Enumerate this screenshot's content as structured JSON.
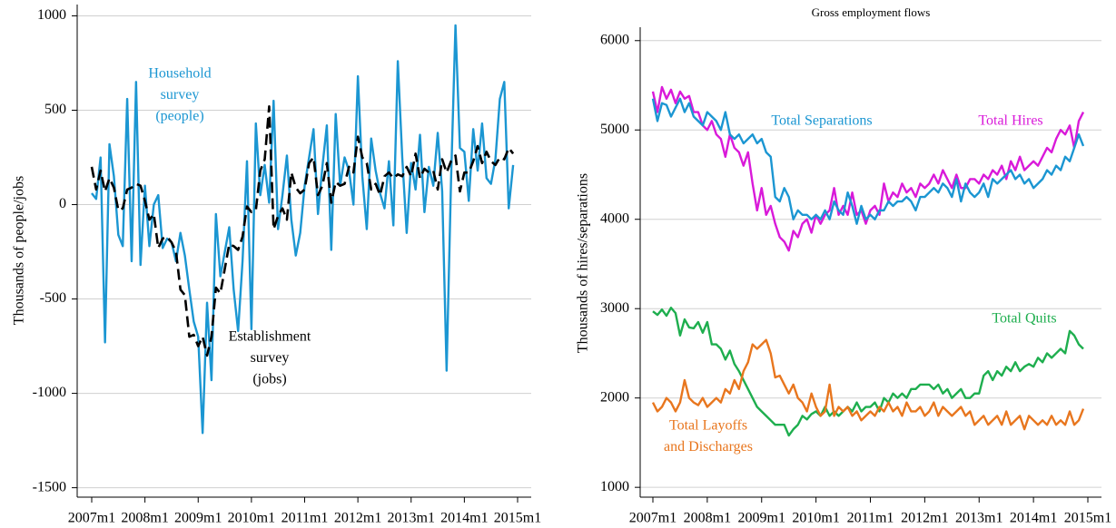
{
  "chart_data": [
    {
      "type": "line",
      "y_label": "Thousands of people/jobs",
      "ylim": [
        -1550,
        1060
      ],
      "yticks": [
        -1500,
        -1000,
        -500,
        0,
        500,
        1000
      ],
      "grid": true,
      "xticks": [
        "2007m1",
        "2008m1",
        "2009m1",
        "2010m1",
        "2011m1",
        "2012m1",
        "2013m1",
        "2014m1",
        "2015m1"
      ],
      "x": [
        "2007m1",
        "2007m2",
        "2007m3",
        "2007m4",
        "2007m5",
        "2007m6",
        "2007m7",
        "2007m8",
        "2007m9",
        "2007m10",
        "2007m11",
        "2007m12",
        "2008m1",
        "2008m2",
        "2008m3",
        "2008m4",
        "2008m5",
        "2008m6",
        "2008m7",
        "2008m8",
        "2008m9",
        "2008m10",
        "2008m11",
        "2008m12",
        "2009m1",
        "2009m2",
        "2009m3",
        "2009m4",
        "2009m5",
        "2009m6",
        "2009m7",
        "2009m8",
        "2009m9",
        "2009m10",
        "2009m11",
        "2009m12",
        "2010m1",
        "2010m2",
        "2010m3",
        "2010m4",
        "2010m5",
        "2010m6",
        "2010m7",
        "2010m8",
        "2010m9",
        "2010m10",
        "2010m11",
        "2010m12",
        "2011m1",
        "2011m2",
        "2011m3",
        "2011m4",
        "2011m5",
        "2011m6",
        "2011m7",
        "2011m8",
        "2011m9",
        "2011m10",
        "2011m11",
        "2011m12",
        "2012m1",
        "2012m2",
        "2012m3",
        "2012m4",
        "2012m5",
        "2012m6",
        "2012m7",
        "2012m8",
        "2012m9",
        "2012m10",
        "2012m11",
        "2012m12",
        "2013m1",
        "2013m2",
        "2013m3",
        "2013m4",
        "2013m5",
        "2013m6",
        "2013m7",
        "2013m8",
        "2013m9",
        "2013m10",
        "2013m11",
        "2013m12",
        "2014m1",
        "2014m2",
        "2014m3",
        "2014m4",
        "2014m5",
        "2014m6",
        "2014m7",
        "2014m8",
        "2014m9",
        "2014m10",
        "2014m11",
        "2014m12"
      ],
      "series": [
        {
          "name": [
            "Household",
            "survey",
            "(people)"
          ],
          "color": "#1b96d2",
          "style": "solid",
          "values": [
            60,
            30,
            250,
            -730,
            320,
            150,
            -160,
            -220,
            560,
            -300,
            650,
            -320,
            100,
            -220,
            0,
            50,
            -230,
            -180,
            -200,
            -300,
            -150,
            -270,
            -450,
            -620,
            -700,
            -1210,
            -520,
            -930,
            -50,
            -380,
            -250,
            -120,
            -450,
            -670,
            -300,
            230,
            -660,
            430,
            50,
            210,
            10,
            550,
            -130,
            50,
            260,
            -80,
            -270,
            -150,
            100,
            250,
            400,
            -50,
            200,
            420,
            -240,
            480,
            100,
            250,
            180,
            0,
            680,
            150,
            -130,
            350,
            180,
            60,
            -20,
            230,
            -110,
            760,
            250,
            -150,
            220,
            80,
            370,
            -40,
            200,
            100,
            380,
            70,
            -880,
            130,
            950,
            300,
            280,
            20,
            400,
            180,
            430,
            140,
            110,
            240,
            560,
            650,
            -20,
            210
          ]
        },
        {
          "name": [
            "Establishment",
            "survey",
            "(jobs)"
          ],
          "color": "#000000",
          "style": "dashed",
          "values": [
            200,
            80,
            180,
            70,
            140,
            90,
            -30,
            -20,
            80,
            90,
            110,
            100,
            20,
            -80,
            -50,
            -230,
            -180,
            -170,
            -200,
            -250,
            -450,
            -480,
            -700,
            -690,
            -750,
            -700,
            -800,
            -700,
            -440,
            -470,
            -340,
            -210,
            -220,
            -240,
            -170,
            -10,
            -40,
            -30,
            180,
            240,
            520,
            -130,
            -60,
            -20,
            -80,
            170,
            90,
            60,
            80,
            220,
            250,
            50,
            100,
            220,
            10,
            120,
            100,
            110,
            200,
            170,
            360,
            250,
            220,
            80,
            110,
            50,
            150,
            170,
            140,
            160,
            150,
            200,
            150,
            270,
            140,
            190,
            170,
            180,
            80,
            240,
            170,
            230,
            260,
            70,
            170,
            170,
            230,
            310,
            220,
            280,
            230,
            210,
            250,
            240,
            300,
            270
          ]
        }
      ]
    },
    {
      "type": "line",
      "title": "Gross employment flows",
      "y_label": "Thousands of hires/separations",
      "ylim": [
        890,
        6150
      ],
      "yticks": [
        1000,
        2000,
        3000,
        4000,
        5000,
        6000
      ],
      "grid": true,
      "xticks": [
        "2007m1",
        "2008m1",
        "2009m1",
        "2010m1",
        "2011m1",
        "2012m1",
        "2013m1",
        "2014m1",
        "2015m1"
      ],
      "x": [
        "2007m1",
        "2007m2",
        "2007m3",
        "2007m4",
        "2007m5",
        "2007m6",
        "2007m7",
        "2007m8",
        "2007m9",
        "2007m10",
        "2007m11",
        "2007m12",
        "2008m1",
        "2008m2",
        "2008m3",
        "2008m4",
        "2008m5",
        "2008m6",
        "2008m7",
        "2008m8",
        "2008m9",
        "2008m10",
        "2008m11",
        "2008m12",
        "2009m1",
        "2009m2",
        "2009m3",
        "2009m4",
        "2009m5",
        "2009m6",
        "2009m7",
        "2009m8",
        "2009m9",
        "2009m10",
        "2009m11",
        "2009m12",
        "2010m1",
        "2010m2",
        "2010m3",
        "2010m4",
        "2010m5",
        "2010m6",
        "2010m7",
        "2010m8",
        "2010m9",
        "2010m10",
        "2010m11",
        "2010m12",
        "2011m1",
        "2011m2",
        "2011m3",
        "2011m4",
        "2011m5",
        "2011m6",
        "2011m7",
        "2011m8",
        "2011m9",
        "2011m10",
        "2011m11",
        "2011m12",
        "2012m1",
        "2012m2",
        "2012m3",
        "2012m4",
        "2012m5",
        "2012m6",
        "2012m7",
        "2012m8",
        "2012m9",
        "2012m10",
        "2012m11",
        "2012m12",
        "2013m1",
        "2013m2",
        "2013m3",
        "2013m4",
        "2013m5",
        "2013m6",
        "2013m7",
        "2013m8",
        "2013m9",
        "2013m10",
        "2013m11",
        "2013m12",
        "2014m1",
        "2014m2",
        "2014m3",
        "2014m4",
        "2014m5",
        "2014m6",
        "2014m7",
        "2014m8",
        "2014m9",
        "2014m10",
        "2014m11",
        "2014m12"
      ],
      "series": [
        {
          "name": [
            "Total Hires"
          ],
          "color": "#d91ad9",
          "style": "solid",
          "values": [
            5430,
            5200,
            5480,
            5350,
            5450,
            5300,
            5430,
            5350,
            5380,
            5200,
            5200,
            5050,
            5000,
            5100,
            4950,
            4900,
            4700,
            4950,
            4800,
            4750,
            4600,
            4750,
            4400,
            4100,
            4350,
            4050,
            4150,
            3950,
            3800,
            3750,
            3650,
            3870,
            3800,
            3950,
            4000,
            3850,
            4050,
            3950,
            4050,
            4100,
            4350,
            4050,
            4150,
            4050,
            4300,
            4050,
            4100,
            3950,
            4100,
            4150,
            4050,
            4400,
            4200,
            4300,
            4250,
            4400,
            4300,
            4350,
            4250,
            4400,
            4350,
            4400,
            4500,
            4400,
            4550,
            4450,
            4350,
            4500,
            4350,
            4350,
            4450,
            4450,
            4400,
            4500,
            4450,
            4550,
            4500,
            4600,
            4450,
            4650,
            4550,
            4700,
            4550,
            4600,
            4650,
            4600,
            4700,
            4800,
            4750,
            4900,
            5000,
            4950,
            5050,
            4800,
            5100,
            5200
          ]
        },
        {
          "name": [
            "Total Separations"
          ],
          "color": "#1b96d2",
          "style": "solid",
          "values": [
            5350,
            5100,
            5300,
            5280,
            5150,
            5250,
            5350,
            5200,
            5300,
            5150,
            5100,
            5050,
            5200,
            5150,
            5100,
            5000,
            5200,
            4950,
            4900,
            4950,
            4850,
            4900,
            4950,
            4850,
            4900,
            4750,
            4700,
            4250,
            4200,
            4350,
            4250,
            4000,
            4100,
            4050,
            4050,
            4000,
            4050,
            4000,
            4100,
            4000,
            4200,
            4100,
            4050,
            4300,
            4150,
            3950,
            4150,
            4000,
            4050,
            4000,
            4100,
            4100,
            4200,
            4150,
            4200,
            4200,
            4250,
            4200,
            4100,
            4250,
            4250,
            4300,
            4350,
            4300,
            4400,
            4350,
            4250,
            4450,
            4200,
            4400,
            4300,
            4250,
            4300,
            4400,
            4250,
            4450,
            4400,
            4450,
            4500,
            4550,
            4450,
            4500,
            4400,
            4450,
            4350,
            4400,
            4450,
            4550,
            4500,
            4600,
            4550,
            4700,
            4650,
            4800,
            4950,
            4820
          ]
        },
        {
          "name": [
            "Total Quits"
          ],
          "color": "#1eae4e",
          "style": "solid",
          "values": [
            2970,
            2930,
            2990,
            2920,
            3010,
            2950,
            2700,
            2880,
            2790,
            2780,
            2850,
            2730,
            2850,
            2600,
            2600,
            2550,
            2430,
            2530,
            2380,
            2300,
            2200,
            2100,
            2000,
            1900,
            1850,
            1800,
            1750,
            1700,
            1700,
            1700,
            1580,
            1650,
            1700,
            1800,
            1760,
            1820,
            1850,
            1800,
            1900,
            1800,
            1850,
            1800,
            1850,
            1900,
            1850,
            1950,
            1850,
            1900,
            1900,
            1950,
            1850,
            2000,
            1950,
            2050,
            2000,
            2050,
            2000,
            2100,
            2100,
            2150,
            2150,
            2150,
            2100,
            2150,
            2050,
            2100,
            2000,
            2050,
            2100,
            2000,
            2000,
            2050,
            2050,
            2250,
            2300,
            2200,
            2300,
            2250,
            2350,
            2300,
            2400,
            2300,
            2350,
            2380,
            2350,
            2450,
            2400,
            2500,
            2450,
            2500,
            2550,
            2500,
            2750,
            2700,
            2600,
            2550
          ]
        },
        {
          "name": [
            "Total Layoffs",
            "and Discharges"
          ],
          "color": "#e8761e",
          "style": "solid",
          "values": [
            1950,
            1850,
            1900,
            2000,
            1950,
            1850,
            1950,
            2200,
            2000,
            1950,
            1920,
            2000,
            1900,
            1950,
            2000,
            1950,
            2100,
            2050,
            2200,
            2100,
            2300,
            2400,
            2600,
            2550,
            2600,
            2650,
            2500,
            2230,
            2250,
            2150,
            2050,
            2150,
            2000,
            1950,
            1850,
            2050,
            1900,
            1800,
            1850,
            2150,
            1800,
            1900,
            1850,
            1900,
            1800,
            1850,
            1750,
            1800,
            1850,
            1800,
            1900,
            1850,
            1950,
            1850,
            1900,
            1800,
            1950,
            1850,
            1850,
            1900,
            1800,
            1850,
            1950,
            1800,
            1900,
            1850,
            1800,
            1850,
            1900,
            1800,
            1850,
            1700,
            1750,
            1800,
            1700,
            1750,
            1800,
            1700,
            1850,
            1700,
            1750,
            1800,
            1650,
            1800,
            1750,
            1700,
            1750,
            1700,
            1800,
            1700,
            1750,
            1700,
            1850,
            1700,
            1750,
            1880
          ]
        }
      ]
    }
  ]
}
